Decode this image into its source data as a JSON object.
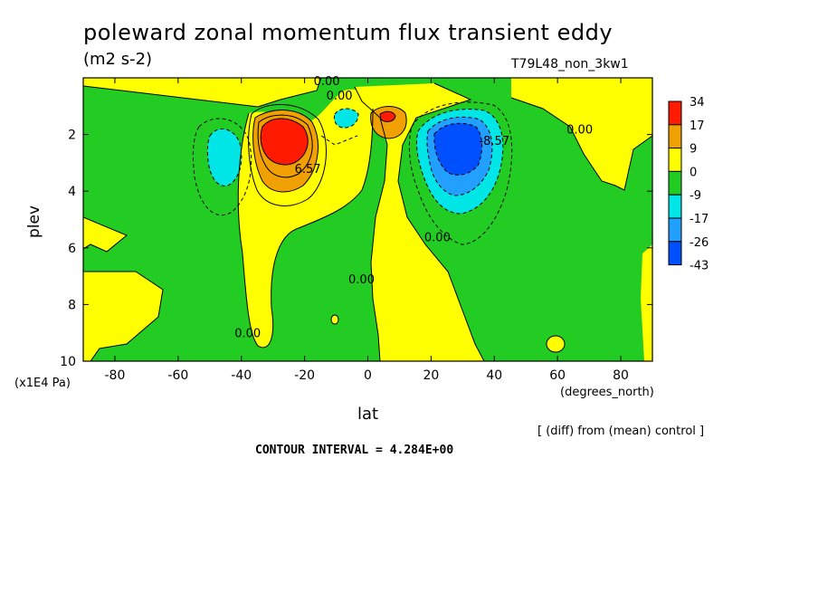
{
  "figure": {
    "title": "poleward zonal momentum flux transient eddy",
    "units": "(m2 s-2)",
    "run_label": "T79L48_non_3kw1",
    "y_unit_label": "(x1E4 Pa)",
    "x_unit_label": "(degrees_north)",
    "diff_note": "[ (diff) from (mean) control ]",
    "contour_interval": "CONTOUR INTERVAL = 4.284E+00"
  },
  "colors": {
    "red": "#ff1a00",
    "orange": "#f0a000",
    "yellow": "#ffff00",
    "green": "#22cc22",
    "cyan": "#00e6e6",
    "lightblue": "#22a0ff",
    "blue": "#0050ff"
  },
  "chart_data": {
    "type": "heatmap",
    "title": "poleward zonal momentum flux transient eddy",
    "xlabel": "lat",
    "ylabel": "plev",
    "xlim": [
      -90,
      90
    ],
    "ylim": [
      10,
      0
    ],
    "x_ticks": [
      -80,
      -60,
      -40,
      -20,
      0,
      20,
      40,
      60,
      80
    ],
    "y_ticks": [
      2,
      4,
      6,
      8,
      10
    ],
    "colorbar": {
      "levels": [
        "34",
        "17",
        "9",
        "0",
        "-9",
        "-17",
        "-26",
        "-43"
      ],
      "colors": [
        "#ff1a00",
        "#f0a000",
        "#ffff00",
        "#22cc22",
        "#00e6e6",
        "#22a0ff",
        "#0050ff"
      ]
    },
    "contour_labels": [
      {
        "text": "0.00",
        "lat": -13,
        "plev": 0.1
      },
      {
        "text": "0.00",
        "lat": -9,
        "plev": 0.6
      },
      {
        "text": "0.00",
        "lat": 67,
        "plev": 1.8
      },
      {
        "text": "6.57",
        "lat": -19,
        "plev": 3.2
      },
      {
        "text": "-8.57",
        "lat": 40,
        "plev": 2.2
      },
      {
        "text": "0.00",
        "lat": 22,
        "plev": 5.6
      },
      {
        "text": "0.00",
        "lat": -2,
        "plev": 7.1
      },
      {
        "text": "0.00",
        "lat": -38,
        "plev": 9.0
      }
    ],
    "features": [
      {
        "name": "positive maximum",
        "lat": -27,
        "plev": 2.2,
        "level": "34"
      },
      {
        "name": "positive maximum",
        "lat": 6,
        "plev": 1.5,
        "level": "17"
      },
      {
        "name": "negative minimum",
        "lat": 29,
        "plev": 2.4,
        "level": "-43"
      },
      {
        "name": "negative minimum",
        "lat": -44,
        "plev": 2.8,
        "level": "-17"
      },
      {
        "name": "negative minimum",
        "lat": -7,
        "plev": 1.3,
        "level": "-17"
      }
    ]
  }
}
